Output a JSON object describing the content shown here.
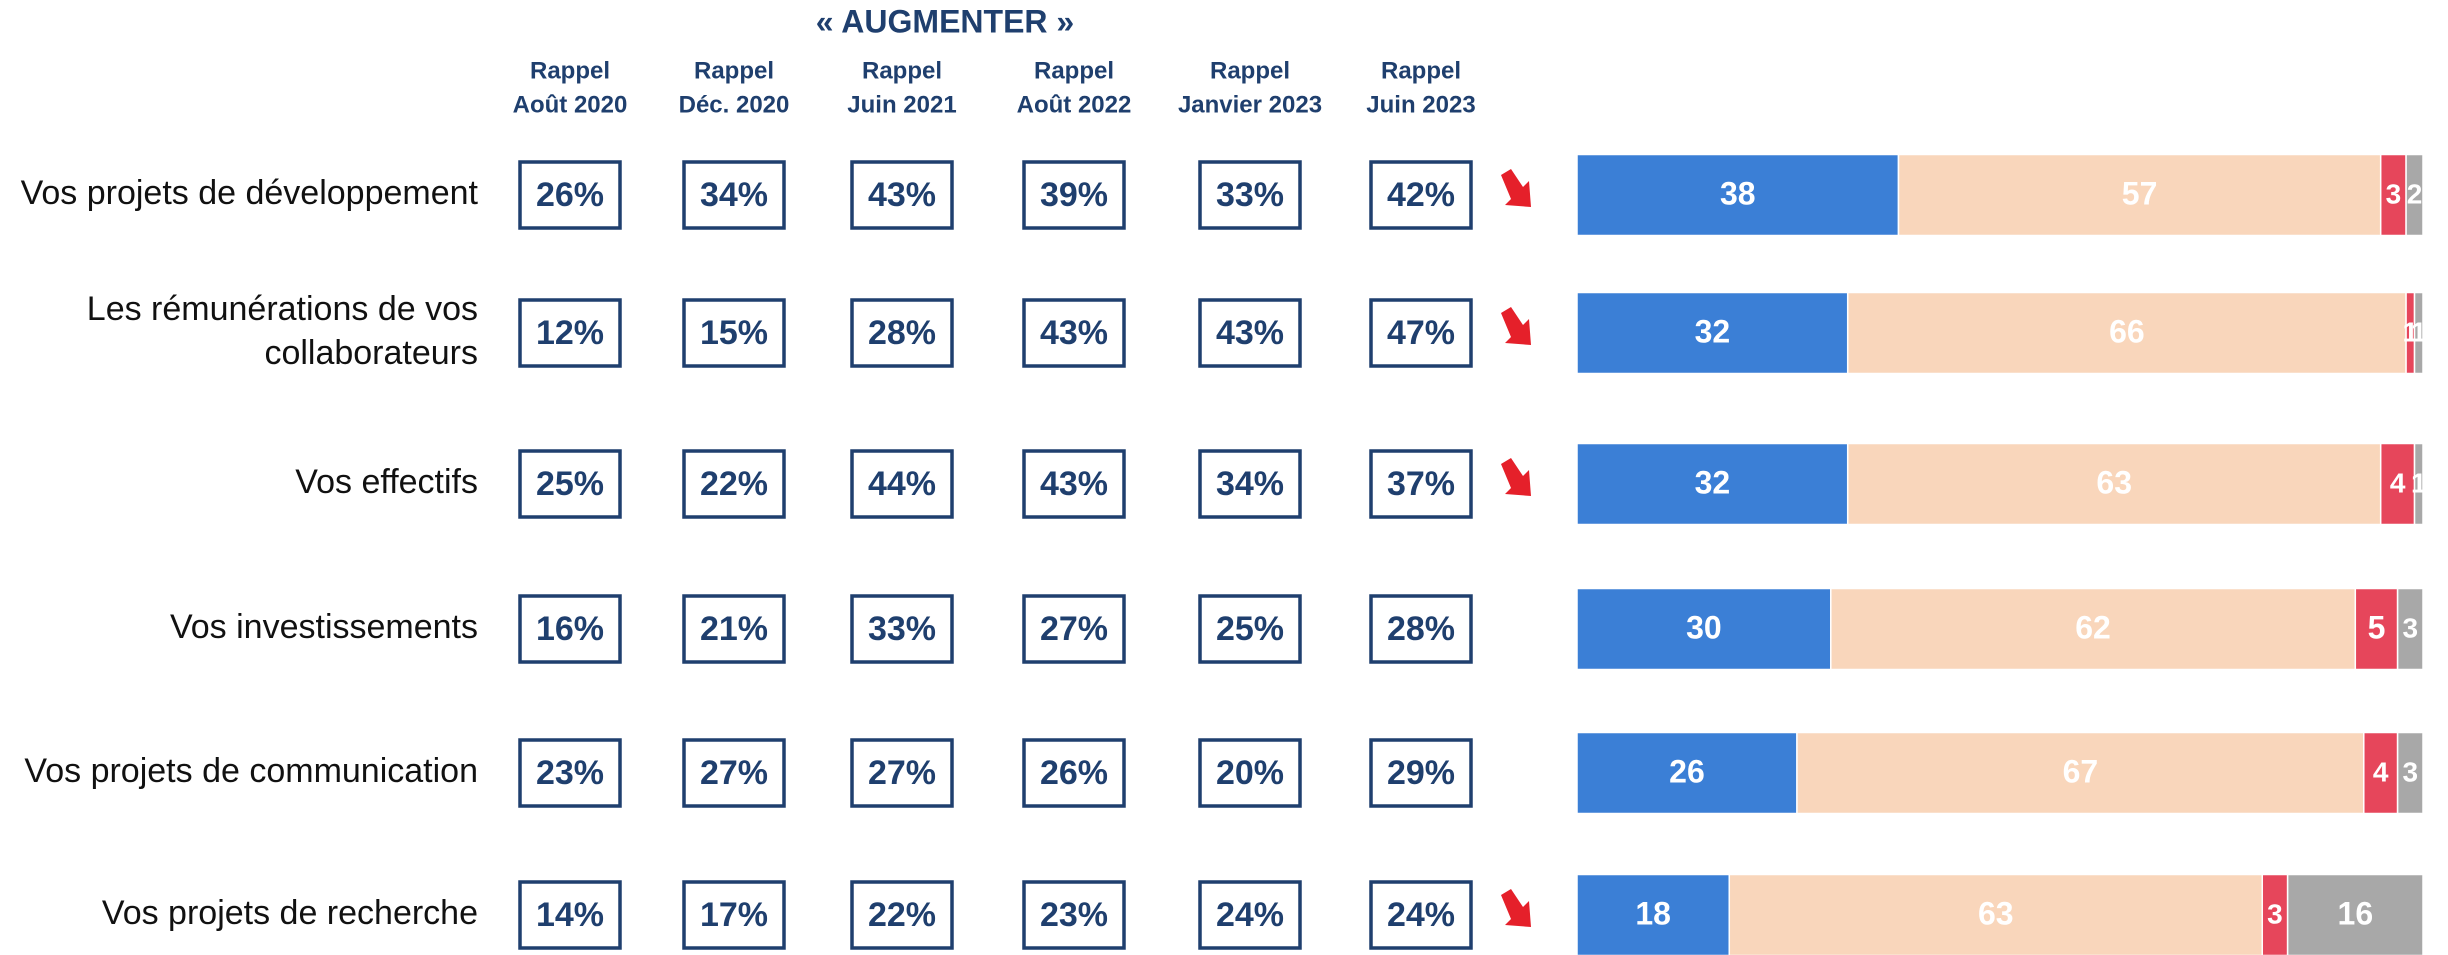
{
  "title": "« AUGMENTER »",
  "columns": [
    [
      "Rappel",
      "Août 2020"
    ],
    [
      "Rappel",
      "Déc. 2020"
    ],
    [
      "Rappel",
      "Juin 2021"
    ],
    [
      "Rappel",
      "Août 2022"
    ],
    [
      "Rappel",
      "Janvier 2023"
    ],
    [
      "Rappel",
      "Juin 2023"
    ]
  ],
  "bar_colors": [
    "#3b7fd6",
    "#f9d6bb",
    "#e6465b",
    "#a8a8a8"
  ],
  "rows": [
    {
      "label": [
        "Vos projets de développement"
      ],
      "history": [
        "26%",
        "34%",
        "43%",
        "39%",
        "33%",
        "42%"
      ],
      "trend": "down",
      "bar": [
        38,
        57,
        3,
        2
      ]
    },
    {
      "label": [
        "Les rémunérations de vos",
        "collaborateurs"
      ],
      "history": [
        "12%",
        "15%",
        "28%",
        "43%",
        "43%",
        "47%"
      ],
      "trend": "down",
      "bar": [
        32,
        66,
        1,
        1
      ]
    },
    {
      "label": [
        "Vos effectifs"
      ],
      "history": [
        "25%",
        "22%",
        "44%",
        "43%",
        "34%",
        "37%"
      ],
      "trend": "down",
      "bar": [
        32,
        63,
        4,
        1
      ]
    },
    {
      "label": [
        "Vos investissements"
      ],
      "history": [
        "16%",
        "21%",
        "33%",
        "27%",
        "25%",
        "28%"
      ],
      "bar": [
        30,
        62,
        5,
        3
      ]
    },
    {
      "label": [
        "Vos projets de communication"
      ],
      "history": [
        "23%",
        "27%",
        "27%",
        "26%",
        "20%",
        "29%"
      ],
      "bar": [
        26,
        67,
        4,
        3
      ]
    },
    {
      "label": [
        "Vos projets de recherche"
      ],
      "history": [
        "14%",
        "17%",
        "22%",
        "23%",
        "24%",
        "24%"
      ],
      "trend": "down",
      "bar": [
        18,
        63,
        3,
        16
      ]
    }
  ]
}
